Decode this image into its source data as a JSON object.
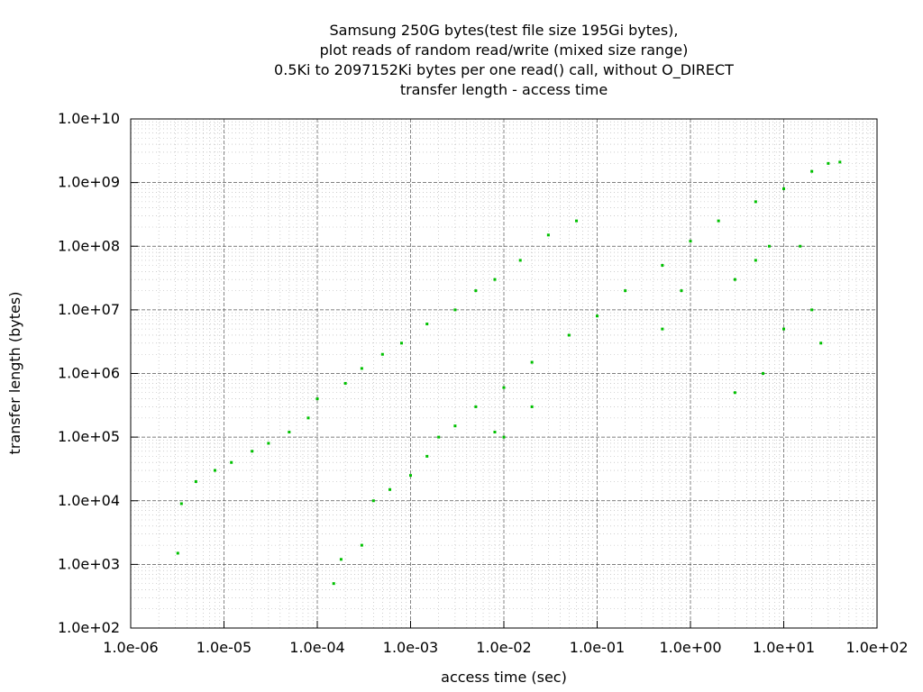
{
  "chart_data": {
    "type": "scatter",
    "title_lines": [
      "Samsung 250G bytes(test file size 195Gi bytes),",
      "plot reads of random read/write (mixed size range)",
      "0.5Ki to 2097152Ki bytes per one read() call, without O_DIRECT",
      "transfer length - access time"
    ],
    "xlabel": "access time (sec)",
    "ylabel": "transfer length (bytes)",
    "x_scale": "log",
    "y_scale": "log",
    "xlim": [
      1e-06,
      100
    ],
    "ylim": [
      100,
      10000000000.0
    ],
    "x_ticks": [
      {
        "value": 1e-06,
        "label": "1.0e-06"
      },
      {
        "value": 1e-05,
        "label": "1.0e-05"
      },
      {
        "value": 0.0001,
        "label": "1.0e-04"
      },
      {
        "value": 0.001,
        "label": "1.0e-03"
      },
      {
        "value": 0.01,
        "label": "1.0e-02"
      },
      {
        "value": 0.1,
        "label": "1.0e-01"
      },
      {
        "value": 1,
        "label": "1.0e+00"
      },
      {
        "value": 10,
        "label": "1.0e+01"
      },
      {
        "value": 100,
        "label": "1.0e+02"
      }
    ],
    "y_ticks": [
      {
        "value": 100,
        "label": "1.0e+02"
      },
      {
        "value": 1000,
        "label": "1.0e+03"
      },
      {
        "value": 10000,
        "label": "1.0e+04"
      },
      {
        "value": 100000,
        "label": "1.0e+05"
      },
      {
        "value": 1000000,
        "label": "1.0e+06"
      },
      {
        "value": 10000000,
        "label": "1.0e+07"
      },
      {
        "value": 100000000,
        "label": "1.0e+08"
      },
      {
        "value": 1000000000,
        "label": "1.0e+09"
      },
      {
        "value": 10000000000,
        "label": "1.0e+10"
      }
    ],
    "grid": true,
    "point_color": "#00c000",
    "series": [
      {
        "points": [
          [
            3.2e-06,
            1500
          ],
          [
            3.5e-06,
            9000
          ],
          [
            5e-06,
            20000
          ],
          [
            8e-06,
            30000
          ],
          [
            1.2e-05,
            40000
          ],
          [
            2e-05,
            60000
          ],
          [
            3e-05,
            80000
          ],
          [
            5e-05,
            120000
          ],
          [
            8e-05,
            200000
          ],
          [
            0.0001,
            400000
          ],
          [
            0.0002,
            700000
          ],
          [
            0.0003,
            1200000
          ],
          [
            0.0005,
            2000000
          ],
          [
            0.0008,
            3000000
          ],
          [
            0.0015,
            6000000
          ],
          [
            0.003,
            10000000
          ],
          [
            0.005,
            20000000
          ],
          [
            0.008,
            30000000
          ],
          [
            0.015,
            60000000
          ],
          [
            0.03,
            150000000
          ],
          [
            0.06,
            250000000
          ],
          [
            0.00015,
            500
          ],
          [
            0.00018,
            1200
          ],
          [
            0.0003,
            2000
          ],
          [
            0.0004,
            10000
          ],
          [
            0.0006,
            15000
          ],
          [
            0.001,
            25000
          ],
          [
            0.0015,
            50000
          ],
          [
            0.002,
            100000
          ],
          [
            0.003,
            150000
          ],
          [
            0.005,
            300000
          ],
          [
            0.01,
            600000
          ],
          [
            0.02,
            1500000
          ],
          [
            0.05,
            4000000
          ],
          [
            0.1,
            8000000
          ],
          [
            0.2,
            20000000
          ],
          [
            0.5,
            50000000
          ],
          [
            1,
            120000000
          ],
          [
            2,
            250000000
          ],
          [
            5,
            500000000
          ],
          [
            10.0,
            800000000
          ],
          [
            20.0,
            1500000000
          ],
          [
            30.0,
            2000000000
          ],
          [
            40.0,
            2100000000
          ],
          [
            0.008,
            120000
          ],
          [
            0.01,
            100000
          ],
          [
            0.02,
            300000
          ],
          [
            0.5,
            5000000
          ],
          [
            0.8,
            20000000
          ],
          [
            3,
            30000000
          ],
          [
            5,
            60000000
          ],
          [
            7,
            100000000
          ],
          [
            15.0,
            100000000
          ],
          [
            20.0,
            10000000
          ],
          [
            25.0,
            3000000
          ],
          [
            10.0,
            5000000
          ],
          [
            6,
            1000000
          ],
          [
            3,
            500000
          ]
        ]
      }
    ]
  }
}
